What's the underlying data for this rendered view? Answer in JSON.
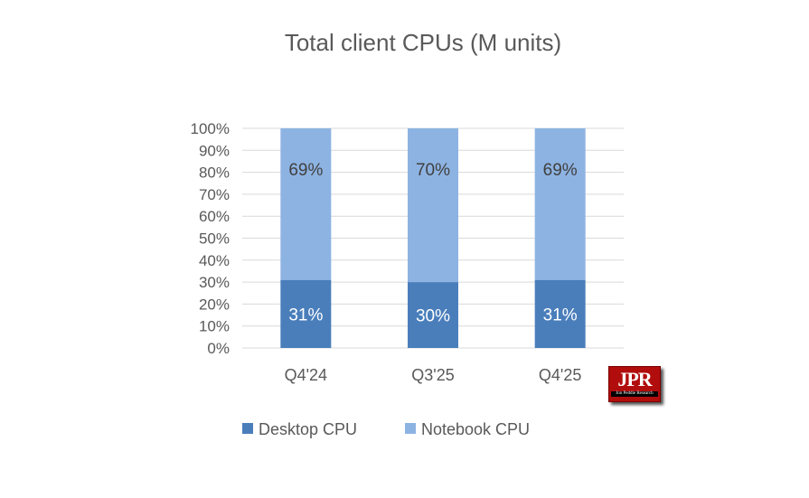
{
  "chart_data": {
    "type": "bar",
    "stacked": true,
    "percent": true,
    "title": "Total client CPUs (M units)",
    "categories": [
      "Q4'24",
      "Q3'25",
      "Q4'25"
    ],
    "series": [
      {
        "name": "Desktop CPU",
        "values": [
          31,
          30,
          31
        ],
        "labels": [
          "31%",
          "30%",
          "31%"
        ],
        "color": "#4a7ebb"
      },
      {
        "name": "Notebook CPU",
        "values": [
          69,
          70,
          69
        ],
        "labels": [
          "69%",
          "70%",
          "69%"
        ],
        "color": "#8db3e2"
      }
    ],
    "ylim": [
      0,
      100
    ],
    "yticks": [
      "0%",
      "10%",
      "20%",
      "30%",
      "40%",
      "50%",
      "60%",
      "70%",
      "80%",
      "90%",
      "100%"
    ],
    "grid": true,
    "legend_position": "bottom"
  },
  "logo": {
    "text": "JPR",
    "subtext": "Jon Peddie Research"
  }
}
